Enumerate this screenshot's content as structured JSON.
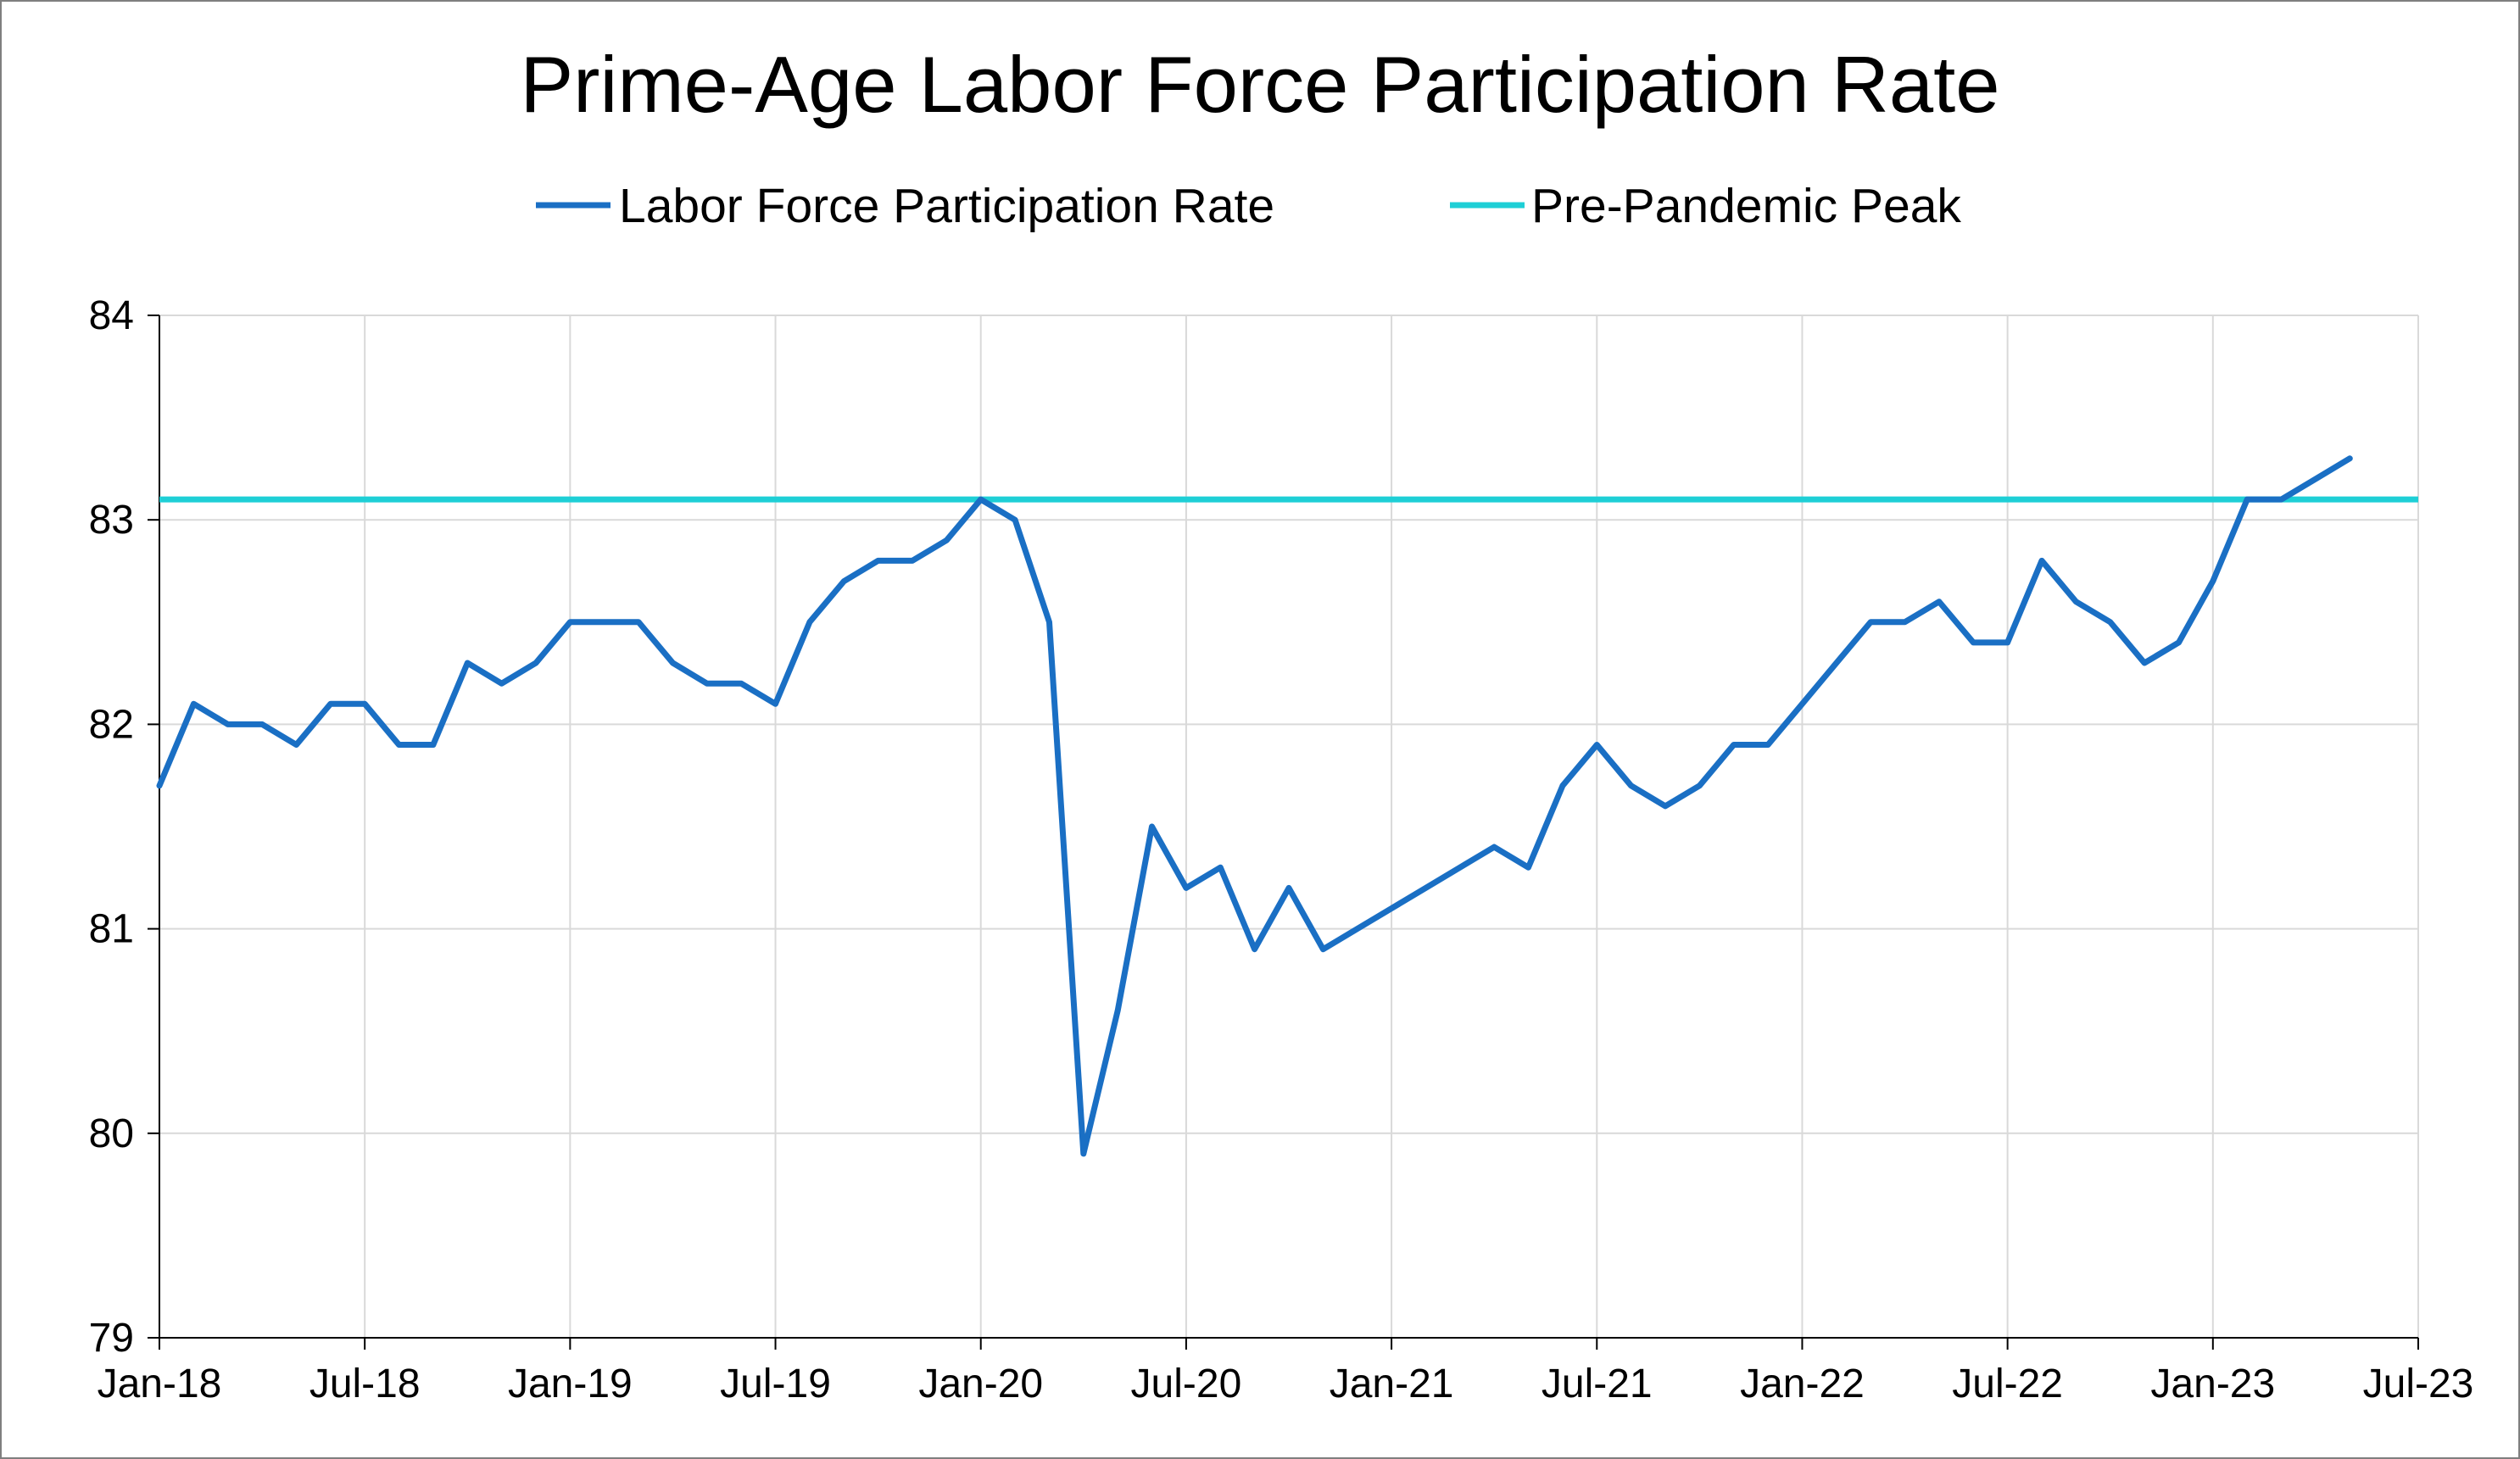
{
  "chart_data": {
    "type": "line",
    "title": "Prime-Age Labor Force Participation Rate",
    "xlabel": "",
    "ylabel": "",
    "ylim": [
      79,
      84
    ],
    "yticks": [
      "79",
      "80",
      "81",
      "82",
      "83",
      "84"
    ],
    "xlim": [
      "2018-01",
      "2023-07"
    ],
    "xticks": [
      "Jan-18",
      "Jul-18",
      "Jan-19",
      "Jul-19",
      "Jan-20",
      "Jul-20",
      "Jan-21",
      "Jul-21",
      "Jan-22",
      "Jul-22",
      "Jan-23",
      "Jul-23"
    ],
    "grid": true,
    "legend_position": "top",
    "x": [
      "2018-01",
      "2018-02",
      "2018-03",
      "2018-04",
      "2018-05",
      "2018-06",
      "2018-07",
      "2018-08",
      "2018-09",
      "2018-10",
      "2018-11",
      "2018-12",
      "2019-01",
      "2019-02",
      "2019-03",
      "2019-04",
      "2019-05",
      "2019-06",
      "2019-07",
      "2019-08",
      "2019-09",
      "2019-10",
      "2019-11",
      "2019-12",
      "2020-01",
      "2020-02",
      "2020-03",
      "2020-04",
      "2020-05",
      "2020-06",
      "2020-07",
      "2020-08",
      "2020-09",
      "2020-10",
      "2020-11",
      "2020-12",
      "2021-01",
      "2021-02",
      "2021-03",
      "2021-04",
      "2021-05",
      "2021-06",
      "2021-07",
      "2021-08",
      "2021-09",
      "2021-10",
      "2021-11",
      "2021-12",
      "2022-01",
      "2022-02",
      "2022-03",
      "2022-04",
      "2022-05",
      "2022-06",
      "2022-07",
      "2022-08",
      "2022-09",
      "2022-10",
      "2022-11",
      "2022-12",
      "2023-01",
      "2023-02",
      "2023-03",
      "2023-04",
      "2023-05"
    ],
    "series": [
      {
        "name": "Labor Force Participation Rate",
        "color": "#1a6fc4",
        "values": [
          81.7,
          82.1,
          82.0,
          82.0,
          81.9,
          82.1,
          82.1,
          81.9,
          81.9,
          82.3,
          82.2,
          82.3,
          82.5,
          82.5,
          82.5,
          82.3,
          82.2,
          82.2,
          82.1,
          82.5,
          82.7,
          82.8,
          82.8,
          82.9,
          83.1,
          83.0,
          82.5,
          79.9,
          80.6,
          81.5,
          81.2,
          81.3,
          80.9,
          81.2,
          80.9,
          81.0,
          81.1,
          81.2,
          81.3,
          81.4,
          81.3,
          81.7,
          81.9,
          81.7,
          81.6,
          81.7,
          81.9,
          81.9,
          82.1,
          82.3,
          82.5,
          82.5,
          82.6,
          82.4,
          82.4,
          82.8,
          82.6,
          82.5,
          82.3,
          82.4,
          82.7,
          83.1,
          83.1,
          83.2,
          83.3
        ]
      },
      {
        "name": "Pre-Pandemic Peak",
        "color": "#1ecfd6",
        "constant": 83.1
      }
    ]
  }
}
